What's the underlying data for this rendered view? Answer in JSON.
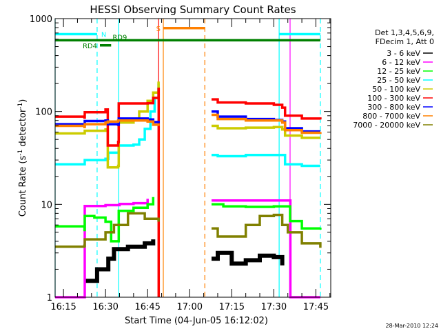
{
  "chart_data": {
    "type": "line",
    "title": "HESSI Observing Summary Count Rates",
    "xlabel": "Start Time (04-Jun-05 16:12:02)",
    "ylabel": "Count Rate (s⁻¹ detector⁻¹)",
    "ylabel_parts": {
      "main": "Count Rate (s",
      "sup1": "-1",
      "mid": " detector",
      "sup2": "-1",
      "end": ")"
    },
    "yscale": "log",
    "ylim": [
      1,
      1000
    ],
    "y_ticks": [
      {
        "value": 1,
        "label": "1"
      },
      {
        "value": 10,
        "label": "10"
      },
      {
        "value": 100,
        "label": "100"
      },
      {
        "value": 1000,
        "label": "1000"
      }
    ],
    "x_unit": "minutes after 16:00",
    "xlim": [
      12.03,
      110.3
    ],
    "x_ticks": [
      {
        "value": 15,
        "label": "16:15"
      },
      {
        "value": 30,
        "label": "16:30"
      },
      {
        "value": 45,
        "label": "16:45"
      },
      {
        "value": 60,
        "label": "17:00"
      },
      {
        "value": 75,
        "label": "17:15"
      },
      {
        "value": 90,
        "label": "17:30"
      },
      {
        "value": 105,
        "label": "17:45"
      }
    ],
    "legend": {
      "position": "right",
      "header": [
        "Det 1,3,4,5,6,9,",
        "FDecim 1, Att 0"
      ]
    },
    "series": [
      {
        "name": "3 - 6 keV",
        "color": "#000000",
        "points": [
          [
            22.5,
            1.5
          ],
          [
            27,
            2
          ],
          [
            31,
            2.6
          ],
          [
            33,
            3.3
          ],
          [
            38,
            3.5
          ],
          [
            44,
            3.8
          ],
          [
            47,
            4.2
          ],
          [
            48.9,
            null
          ],
          [
            67.8,
            2.6
          ],
          [
            70,
            3
          ],
          [
            75,
            2.3
          ],
          [
            80,
            2.5
          ],
          [
            85,
            2.8
          ],
          [
            90,
            2.7
          ],
          [
            93,
            2.2
          ],
          [
            95.8,
            null
          ]
        ]
      },
      {
        "name": "6 - 12 keV",
        "color": "#ff00ff",
        "points": [
          [
            12.03,
            1
          ],
          [
            22.5,
            1
          ],
          [
            22.6,
            9.6
          ],
          [
            30,
            9.8
          ],
          [
            35,
            10.1
          ],
          [
            40,
            10.3
          ],
          [
            45,
            11.5
          ],
          [
            48.9,
            null
          ],
          [
            67.8,
            11
          ],
          [
            75,
            11
          ],
          [
            85,
            11
          ],
          [
            92,
            11
          ],
          [
            95.8,
            11
          ],
          [
            95.9,
            1
          ],
          [
            106.6,
            1
          ],
          [
            106.7,
            null
          ]
        ]
      },
      {
        "name": "12 - 25 keV",
        "color": "#00ff00",
        "points": [
          [
            12.03,
            5.8
          ],
          [
            22.5,
            5.3
          ],
          [
            22.6,
            7.5
          ],
          [
            26,
            7.2
          ],
          [
            30,
            6.5
          ],
          [
            32,
            4
          ],
          [
            34.7,
            8.5
          ],
          [
            40,
            9.2
          ],
          [
            45,
            10
          ],
          [
            47,
            12
          ],
          [
            48.9,
            null
          ],
          [
            67.8,
            10
          ],
          [
            72,
            9.5
          ],
          [
            80,
            9.4
          ],
          [
            90,
            9.5
          ],
          [
            95.8,
            6.6
          ],
          [
            100,
            5.5
          ],
          [
            106.6,
            5.6
          ],
          [
            106.7,
            null
          ]
        ]
      },
      {
        "name": "25 - 50 keV",
        "color": "#00ffff",
        "points": [
          [
            12.03,
            27
          ],
          [
            22.5,
            27
          ],
          [
            22.6,
            30
          ],
          [
            30,
            31
          ],
          [
            31,
            36
          ],
          [
            34.5,
            36
          ],
          [
            34.7,
            43
          ],
          [
            40,
            44
          ],
          [
            42,
            50
          ],
          [
            44,
            65
          ],
          [
            46,
            100
          ],
          [
            47.5,
            140
          ],
          [
            48.9,
            200
          ],
          [
            48.95,
            null
          ],
          [
            67.8,
            34
          ],
          [
            70,
            33
          ],
          [
            80,
            34
          ],
          [
            90,
            34
          ],
          [
            92.5,
            34
          ],
          [
            94,
            27
          ],
          [
            100,
            26
          ],
          [
            106.6,
            26
          ],
          [
            106.7,
            null
          ]
        ]
      },
      {
        "name": "50 - 100 keV",
        "color": "#cccc00",
        "points": [
          [
            12.03,
            58
          ],
          [
            22.5,
            58
          ],
          [
            22.6,
            62
          ],
          [
            30,
            64
          ],
          [
            30.8,
            25
          ],
          [
            34.5,
            26
          ],
          [
            34.7,
            76
          ],
          [
            40,
            80
          ],
          [
            42,
            100
          ],
          [
            45,
            130
          ],
          [
            47,
            160
          ],
          [
            48.9,
            210
          ],
          [
            48.95,
            null
          ],
          [
            67.8,
            70
          ],
          [
            70,
            66
          ],
          [
            80,
            67
          ],
          [
            90,
            68
          ],
          [
            93,
            64
          ],
          [
            94,
            55
          ],
          [
            100,
            52
          ],
          [
            106.6,
            52
          ],
          [
            106.7,
            null
          ]
        ]
      },
      {
        "name": "100 - 300 keV",
        "color": "#ff0000",
        "points": [
          [
            12.03,
            88
          ],
          [
            22.5,
            86
          ],
          [
            22.6,
            98
          ],
          [
            30,
            105
          ],
          [
            30.8,
            43
          ],
          [
            34.5,
            47
          ],
          [
            34.7,
            122
          ],
          [
            45,
            123
          ],
          [
            47,
            140
          ],
          [
            48.9,
            175
          ],
          [
            48.95,
            1
          ],
          [
            49,
            null
          ],
          [
            67.8,
            135
          ],
          [
            70,
            125
          ],
          [
            80,
            122
          ],
          [
            90,
            118
          ],
          [
            93,
            110
          ],
          [
            94,
            90
          ],
          [
            100,
            84
          ],
          [
            106.6,
            82
          ],
          [
            106.7,
            null
          ]
        ]
      },
      {
        "name": "300 - 800 keV",
        "color": "#0000ff",
        "points": [
          [
            12.03,
            73
          ],
          [
            22.5,
            71
          ],
          [
            22.6,
            79
          ],
          [
            30,
            80
          ],
          [
            30.8,
            73
          ],
          [
            34.5,
            72
          ],
          [
            34.7,
            84
          ],
          [
            45,
            82
          ],
          [
            47,
            77
          ],
          [
            48.9,
            75
          ],
          [
            48.95,
            null
          ],
          [
            67.8,
            100
          ],
          [
            70,
            88
          ],
          [
            80,
            83
          ],
          [
            90,
            81
          ],
          [
            93,
            78
          ],
          [
            94,
            66
          ],
          [
            100,
            61
          ],
          [
            106.6,
            61
          ],
          [
            106.7,
            null
          ]
        ]
      },
      {
        "name": "800 - 7000 keV",
        "color": "#ff8000",
        "points": [
          [
            12.03,
            70
          ],
          [
            22.5,
            68
          ],
          [
            22.6,
            73
          ],
          [
            30,
            76
          ],
          [
            30.8,
            78
          ],
          [
            34.5,
            80
          ],
          [
            34.7,
            80
          ],
          [
            45,
            78
          ],
          [
            47,
            72
          ],
          [
            48.9,
            70
          ],
          [
            48.95,
            null
          ],
          [
            67.8,
            92
          ],
          [
            70,
            83
          ],
          [
            80,
            80
          ],
          [
            90,
            80
          ],
          [
            93,
            76
          ],
          [
            94,
            63
          ],
          [
            100,
            59
          ],
          [
            106.6,
            60
          ],
          [
            106.7,
            null
          ]
        ]
      },
      {
        "name": "7000 - 20000 keV",
        "color": "#808000",
        "points": [
          [
            12.03,
            3.5
          ],
          [
            22.5,
            3.6
          ],
          [
            22.6,
            4.2
          ],
          [
            30,
            5
          ],
          [
            33,
            6
          ],
          [
            38,
            8
          ],
          [
            44,
            7
          ],
          [
            48.9,
            6.5
          ],
          [
            48.95,
            null
          ],
          [
            67.8,
            5.5
          ],
          [
            70,
            4.5
          ],
          [
            75,
            4.5
          ],
          [
            80,
            6
          ],
          [
            85,
            7.5
          ],
          [
            90,
            7.7
          ],
          [
            93,
            6
          ],
          [
            95,
            5
          ],
          [
            100,
            3.8
          ],
          [
            106.6,
            3.4
          ],
          [
            106.7,
            null
          ]
        ]
      }
    ],
    "annotations": {
      "vertical_lines": [
        {
          "x": 12.03,
          "color": "#00ffff",
          "style": "solid"
        },
        {
          "x": 27.0,
          "color": "#00ffff",
          "style": "dashed"
        },
        {
          "x": 34.7,
          "color": "#00ffff",
          "style": "solid"
        },
        {
          "x": 48.9,
          "color": "#ff0000",
          "style": "solid"
        },
        {
          "x": 50.6,
          "color": "#ff8000",
          "style": "solid"
        },
        {
          "x": 65.4,
          "color": "#ff8000",
          "style": "dashed"
        },
        {
          "x": 91.9,
          "color": "#00ffff",
          "style": "solid"
        },
        {
          "x": 95.8,
          "color": "#ff00ff",
          "style": "solid"
        },
        {
          "x": 106.6,
          "color": "#00ffff",
          "style": "dashed"
        }
      ],
      "flag_bars": [
        {
          "label": "N",
          "x0": 12.03,
          "x1": 27.0,
          "y": 680,
          "color": "#00ffff",
          "label_pos": "right"
        },
        {
          "label": "",
          "x0": 91.9,
          "x1": 106.6,
          "y": 680,
          "color": "#00ffff"
        },
        {
          "label": "S",
          "x0": 50.6,
          "x1": 65.4,
          "y": 790,
          "color": "#ff8000",
          "label_pos": "left"
        },
        {
          "label": "RD9",
          "x0": 12.03,
          "x1": 106.6,
          "y": 585,
          "color": "#008000",
          "label_pos": "none"
        },
        {
          "label": "RD4",
          "x0": 28.0,
          "x1": 32.0,
          "y": 515,
          "color": "#008000",
          "label_pos": "left"
        }
      ],
      "rd9_label": "RD9"
    }
  },
  "footer": {
    "timestamp": "28-Mar-2010 12:24"
  }
}
